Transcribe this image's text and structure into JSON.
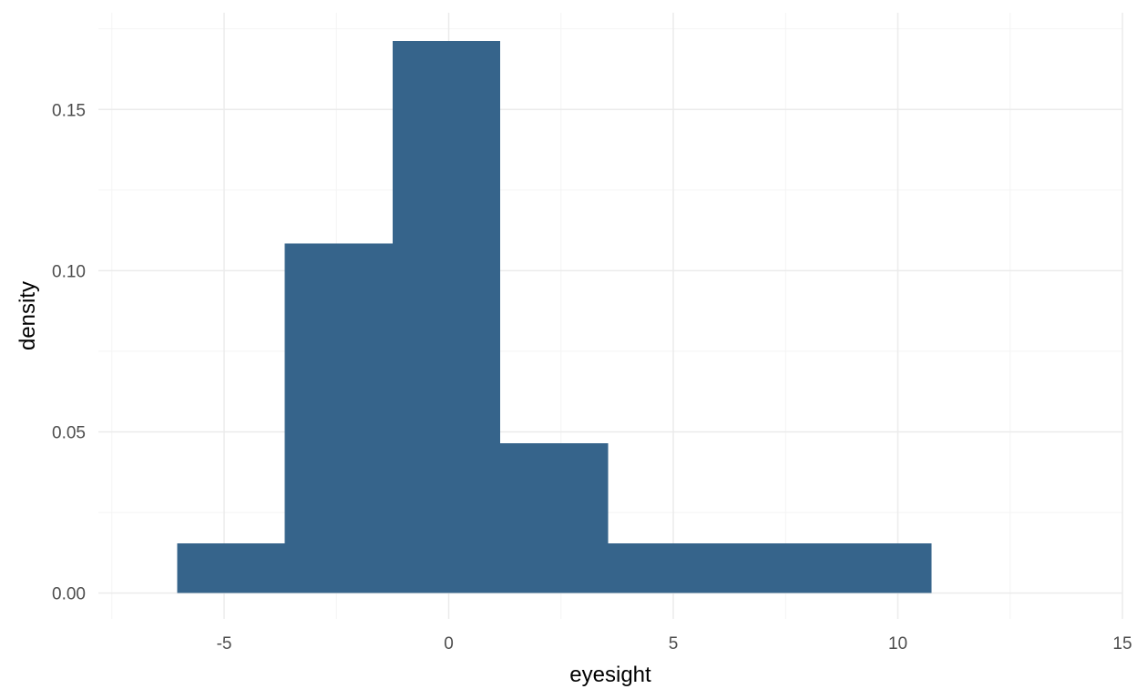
{
  "chart_data": {
    "type": "bar",
    "subtype": "histogram",
    "xlabel": "eyesight",
    "ylabel": "density",
    "xlim": [
      -7.8,
      15
    ],
    "ylim": [
      -0.008,
      0.18
    ],
    "x_ticks": [
      -5,
      0,
      5,
      10,
      15
    ],
    "x_tick_labels": [
      "-5",
      "0",
      "5",
      "10",
      "15"
    ],
    "x_minor_ticks": [
      -7.5,
      -2.5,
      2.5,
      7.5,
      12.5
    ],
    "y_ticks": [
      0.0,
      0.05,
      0.1,
      0.15
    ],
    "y_tick_labels": [
      "0.00",
      "0.05",
      "0.10",
      "0.15"
    ],
    "y_minor_ticks": [
      0.025,
      0.075,
      0.125,
      0.175
    ],
    "bins": [
      {
        "x0": -6.05,
        "x1": -3.65,
        "density": 0.0155
      },
      {
        "x0": -3.65,
        "x1": -1.25,
        "density": 0.1085
      },
      {
        "x0": -1.25,
        "x1": 1.15,
        "density": 0.1712
      },
      {
        "x0": 1.15,
        "x1": 3.55,
        "density": 0.0465
      },
      {
        "x0": 3.55,
        "x1": 5.95,
        "density": 0.0155
      },
      {
        "x0": 5.95,
        "x1": 8.35,
        "density": 0.0155
      },
      {
        "x0": 8.35,
        "x1": 10.75,
        "density": 0.0155
      }
    ],
    "bar_color": "#36648B",
    "grid": true,
    "legend": "none"
  }
}
